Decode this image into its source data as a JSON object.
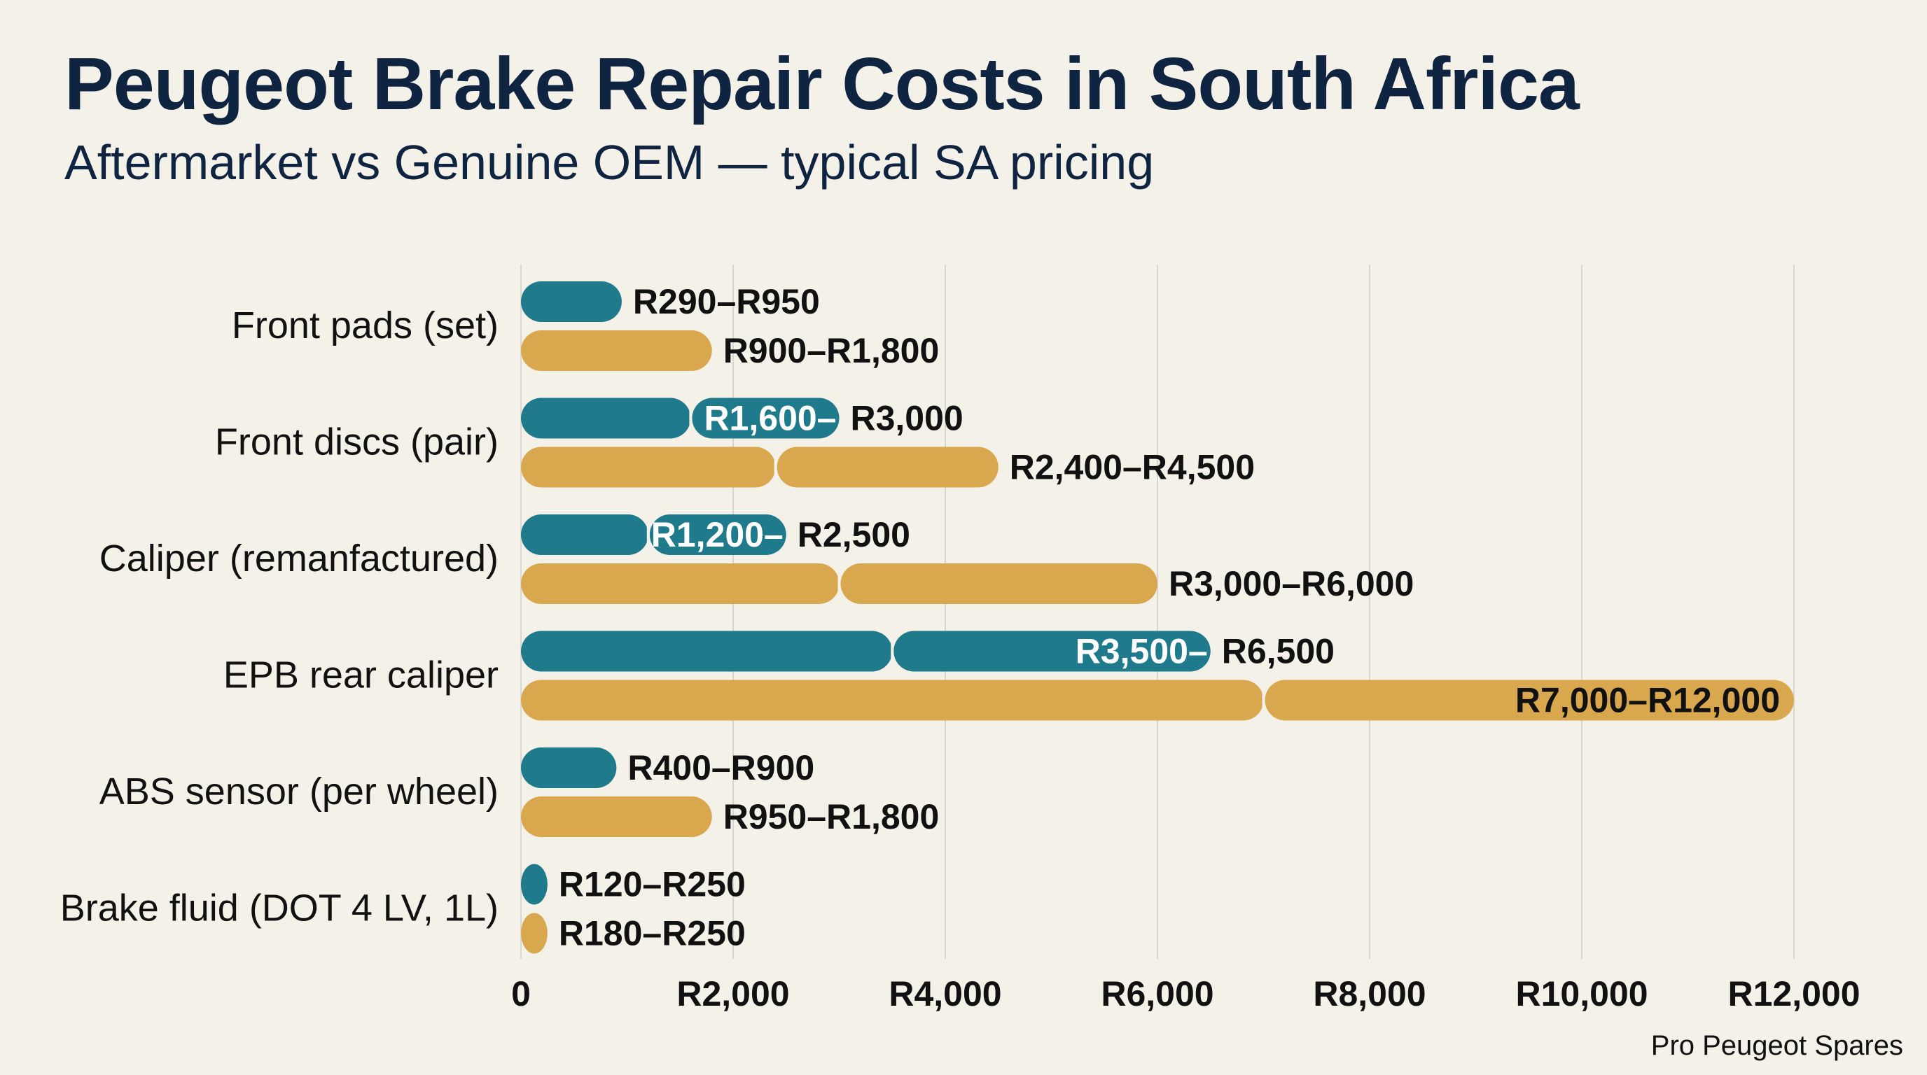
{
  "header": {
    "title": "Peugeot Brake Repair Costs in South Africa",
    "subtitle": "Aftermarket vs Genuine OEM — typical SA pricing"
  },
  "footer": {
    "credit": "Pro Peugeot Spares"
  },
  "colors": {
    "background": "#f4f1e9",
    "aftermarket": "#1f7a8c",
    "oem": "#d9a84e",
    "gridline": "#d8d6d0",
    "title": "#0f2440"
  },
  "chart_data": {
    "type": "bar",
    "orientation": "horizontal",
    "categories": [
      "Front pads (set)",
      "Front discs (pair)",
      "Caliper (remanfactured)",
      "EPB rear caliper",
      "ABS sensor (per wheel)",
      "Brake fluid (DOT 4 LV, 1L)"
    ],
    "series": [
      {
        "key": "aftermarket",
        "color": "#1f7a8c",
        "values": [
          {
            "low": 290,
            "high": 950,
            "label": "R290–R950",
            "split": null,
            "inner_label": null
          },
          {
            "low": 1600,
            "high": 3000,
            "label": "R3,000",
            "split": 1600,
            "inner_label": "R1,600–"
          },
          {
            "low": 1200,
            "high": 2500,
            "label": "R2,500",
            "split": 1200,
            "inner_label": "R1,200–"
          },
          {
            "low": 3500,
            "high": 6500,
            "label": "R6,500",
            "split": 3500,
            "inner_label": "R3,500–"
          },
          {
            "low": 400,
            "high": 900,
            "label": "R400–R900",
            "split": null,
            "inner_label": null
          },
          {
            "low": 120,
            "high": 250,
            "label": "R120–R250",
            "split": null,
            "inner_label": null
          }
        ]
      },
      {
        "key": "oem",
        "color": "#d9a84e",
        "values": [
          {
            "low": 900,
            "high": 1800,
            "label": "R900–R1,800",
            "split": null,
            "inner_label": null
          },
          {
            "low": 2400,
            "high": 4500,
            "label": "R2,400–R4,500",
            "split": 2400,
            "inner_label": null
          },
          {
            "low": 3000,
            "high": 6000,
            "label": "R3,000–R6,000",
            "split": 3000,
            "inner_label": null
          },
          {
            "low": 7000,
            "high": 12000,
            "label": "R7,000–R12,000",
            "split": 7000,
            "inner_label": null,
            "label_inside": true
          },
          {
            "low": 950,
            "high": 1800,
            "label": "R950–R1,800",
            "split": null,
            "inner_label": null
          },
          {
            "low": 180,
            "high": 250,
            "label": "R180–R250",
            "split": null,
            "inner_label": null
          }
        ]
      }
    ],
    "x_ticks": [
      0,
      2000,
      4000,
      6000,
      8000,
      10000,
      12000
    ],
    "x_tick_labels": [
      "0",
      "R2,000",
      "R4,000",
      "R6,000",
      "R8,000",
      "R10,000",
      "R12,000"
    ],
    "xlim": [
      0,
      12000
    ],
    "grid": true,
    "legend": "none"
  }
}
